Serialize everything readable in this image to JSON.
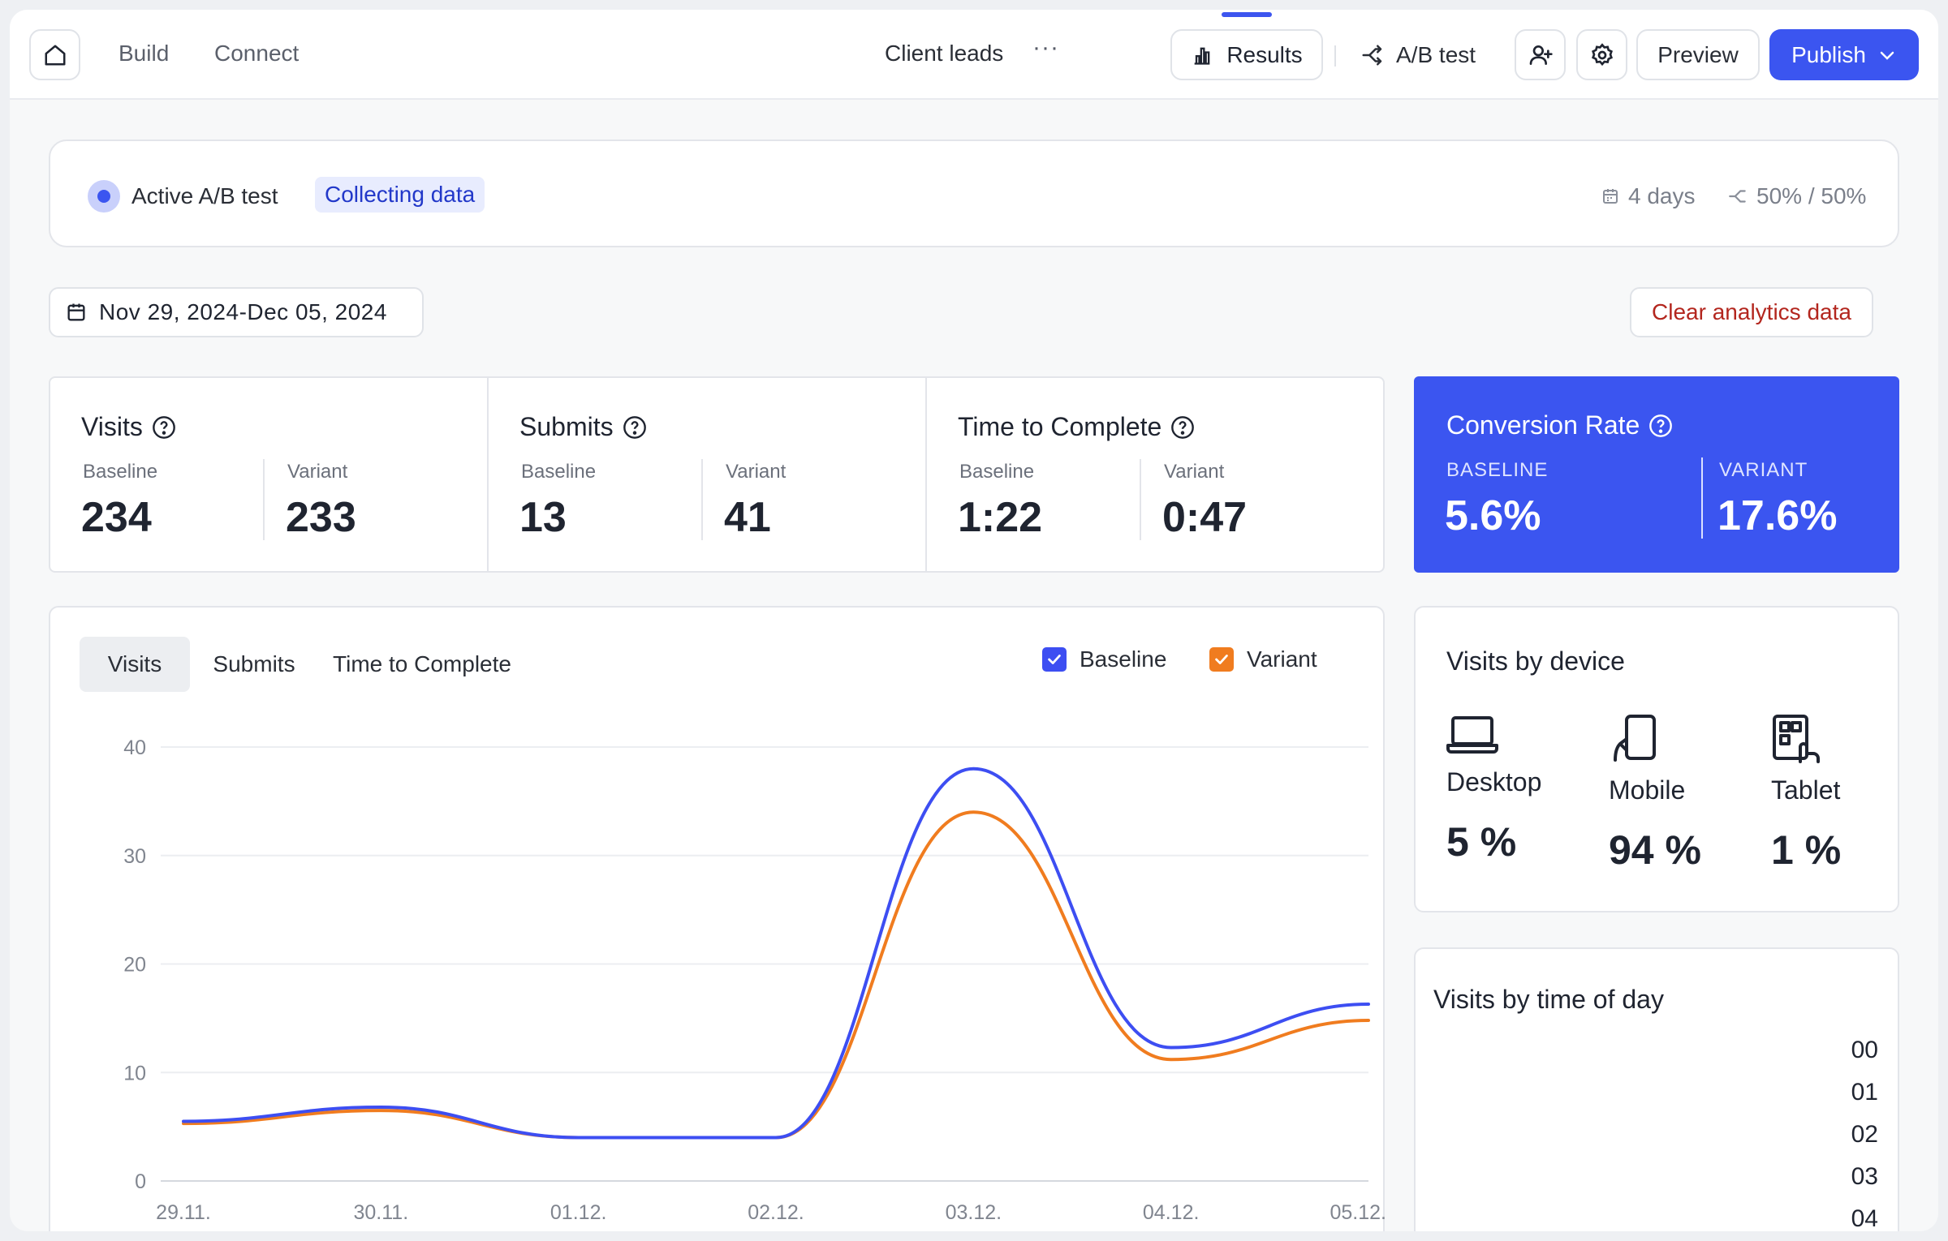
{
  "topbar": {
    "nav": [
      {
        "label": "Build"
      },
      {
        "label": "Connect"
      }
    ],
    "doc_title": "Client leads",
    "doc_more": "···",
    "results_label": "Results",
    "abtest_label": "A/B test",
    "preview_label": "Preview",
    "publish_label": "Publish"
  },
  "status": {
    "label": "Active A/B test",
    "badge": "Collecting data",
    "duration": "4 days",
    "split": "50% / 50%"
  },
  "date_range": "Nov 29, 2024-Dec 05, 2024",
  "clear_label": "Clear analytics data",
  "metrics": [
    {
      "title": "Visits",
      "baseline_label": "Baseline",
      "variant_label": "Variant",
      "baseline": "234",
      "variant": "233"
    },
    {
      "title": "Submits",
      "baseline_label": "Baseline",
      "variant_label": "Variant",
      "baseline": "13",
      "variant": "41"
    },
    {
      "title": "Time to Complete",
      "baseline_label": "Baseline",
      "variant_label": "Variant",
      "baseline": "1:22",
      "variant": "0:47"
    }
  ],
  "conversion": {
    "title": "Conversion Rate",
    "baseline_label": "BASELINE",
    "variant_label": "VARIANT",
    "baseline": "5.6%",
    "variant": "17.6%"
  },
  "chart_tabs": [
    {
      "label": "Visits"
    },
    {
      "label": "Submits"
    },
    {
      "label": "Time to Complete"
    }
  ],
  "chart_data": {
    "type": "line",
    "title": "Visits",
    "categories": [
      "29.11.",
      "30.11.",
      "01.12.",
      "02.12.",
      "03.12.",
      "04.12.",
      "05.12."
    ],
    "series": [
      {
        "name": "Baseline",
        "color": "#3d4ef2",
        "values": [
          5.5,
          6.8,
          4.0,
          4.0,
          38.0,
          12.3,
          16.3
        ]
      },
      {
        "name": "Variant",
        "color": "#f07c1f",
        "values": [
          5.3,
          6.5,
          4.0,
          4.0,
          34.0,
          11.2,
          14.8
        ]
      }
    ],
    "ylim": [
      0,
      40
    ],
    "yticks": [
      "0",
      "10",
      "20",
      "30",
      "40"
    ],
    "grid": true
  },
  "devices": {
    "title": "Visits by device",
    "items": [
      {
        "label": "Desktop",
        "value": "5 %",
        "icon": "laptop-icon"
      },
      {
        "label": "Mobile",
        "value": "94 %",
        "icon": "mobile-icon"
      },
      {
        "label": "Tablet",
        "value": "1 %",
        "icon": "tablet-icon"
      }
    ]
  },
  "time_of_day": {
    "title": "Visits by time of day",
    "hours": [
      "00",
      "01",
      "02",
      "03",
      "04"
    ]
  },
  "colors": {
    "accent": "#3b55f0",
    "baseline": "#3d4ef2",
    "variant": "#f07c1f",
    "danger": "#b3261e"
  }
}
